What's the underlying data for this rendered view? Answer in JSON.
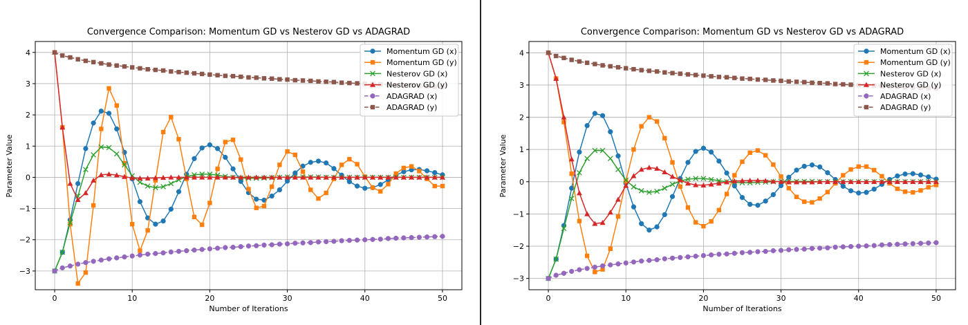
{
  "chart_data": [
    {
      "type": "line",
      "title": "Convergence Comparison: Momentum GD vs Nesterov GD vs ADAGRAD",
      "xlabel": "Number of Iterations",
      "ylabel": "Parameter Value",
      "xlim": [
        -2.5,
        52.5
      ],
      "ylim": [
        -3.6,
        4.35
      ],
      "xticks": [
        0,
        10,
        20,
        30,
        40,
        50
      ],
      "yticks": [
        -3,
        -2,
        -1,
        0,
        1,
        2,
        3,
        4
      ],
      "grid": true,
      "legend_position": "top-right",
      "x": [
        0,
        1,
        2,
        3,
        4,
        5,
        6,
        7,
        8,
        9,
        10,
        11,
        12,
        13,
        14,
        15,
        16,
        17,
        18,
        19,
        20,
        21,
        22,
        23,
        24,
        25,
        26,
        27,
        28,
        29,
        30,
        31,
        32,
        33,
        34,
        35,
        36,
        37,
        38,
        39,
        40,
        41,
        42,
        43,
        44,
        45,
        46,
        47,
        48,
        49,
        50
      ],
      "series": [
        {
          "name": "Momentum GD (x)",
          "color": "#1f77b4",
          "marker": "o",
          "linestyle": "solid",
          "values": [
            -3,
            -2.4,
            -1.36,
            -0.2,
            0.92,
            1.74,
            2.12,
            2.05,
            1.55,
            0.8,
            -0.05,
            -0.78,
            -1.3,
            -1.5,
            -1.4,
            -1.02,
            -0.46,
            0.1,
            0.6,
            0.94,
            1.04,
            0.92,
            0.64,
            0.27,
            -0.13,
            -0.49,
            -0.7,
            -0.73,
            -0.6,
            -0.4,
            -0.12,
            0.14,
            0.36,
            0.48,
            0.52,
            0.46,
            0.28,
            0.07,
            -0.14,
            -0.28,
            -0.35,
            -0.33,
            -0.23,
            -0.08,
            0.07,
            0.18,
            0.24,
            0.25,
            0.21,
            0.15,
            0.08
          ]
        },
        {
          "name": "Momentum GD (y)",
          "color": "#ff7f0e",
          "marker": "s",
          "linestyle": "solid",
          "values": [
            4,
            1.6,
            -1.5,
            -3.4,
            -3.05,
            -0.9,
            1.55,
            2.85,
            2.3,
            0.45,
            -1.5,
            -2.35,
            -1.7,
            -0.1,
            1.45,
            1.93,
            1.22,
            -0.05,
            -1.27,
            -1.52,
            -0.82,
            0.27,
            1.13,
            1.2,
            0.57,
            -0.38,
            -0.98,
            -0.92,
            -0.3,
            0.4,
            0.83,
            0.72,
            0.18,
            -0.4,
            -0.68,
            -0.5,
            -0.05,
            0.4,
            0.58,
            0.42,
            0.02,
            -0.33,
            -0.45,
            -0.22,
            0.12,
            0.3,
            0.35,
            0.2,
            -0.05,
            -0.28,
            -0.28
          ]
        },
        {
          "name": "Nesterov GD (x)",
          "color": "#2ca02c",
          "marker": "x",
          "linestyle": "solid",
          "values": [
            -3,
            -2.4,
            -1.45,
            -0.6,
            0.25,
            0.72,
            0.97,
            0.95,
            0.75,
            0.4,
            0.05,
            -0.16,
            -0.28,
            -0.33,
            -0.3,
            -0.2,
            -0.08,
            0.02,
            0.08,
            0.1,
            0.1,
            0.07,
            0.03,
            0,
            -0.02,
            -0.03,
            -0.03,
            -0.02,
            -0.01,
            0,
            0.01,
            0.01,
            0.01,
            0.01,
            0.01,
            0,
            0,
            0,
            0,
            0,
            0,
            0,
            0,
            0,
            0,
            0,
            0,
            0,
            0,
            0,
            0
          ]
        },
        {
          "name": "Nesterov GD (y)",
          "color": "#d62728",
          "marker": "^",
          "linestyle": "solid",
          "values": [
            4,
            1.6,
            -0.2,
            -0.72,
            -0.5,
            -0.1,
            0.08,
            0.1,
            0.07,
            0.02,
            -0.02,
            -0.03,
            -0.03,
            -0.02,
            -0.01,
            0,
            0,
            0,
            0,
            0,
            0,
            0,
            0,
            0,
            0,
            0,
            0,
            0,
            0,
            0,
            0,
            0,
            0,
            0,
            0,
            0,
            0,
            0,
            0,
            0,
            0,
            0,
            0,
            0,
            0,
            0,
            0,
            0,
            0,
            0,
            0
          ]
        },
        {
          "name": "ADAGRAD (x)",
          "color": "#9467bd",
          "marker": "o",
          "linestyle": "dashed",
          "values": [
            -3,
            -2.9,
            -2.84,
            -2.78,
            -2.73,
            -2.69,
            -2.65,
            -2.61,
            -2.58,
            -2.55,
            -2.52,
            -2.49,
            -2.46,
            -2.44,
            -2.42,
            -2.39,
            -2.37,
            -2.35,
            -2.33,
            -2.31,
            -2.29,
            -2.27,
            -2.25,
            -2.24,
            -2.22,
            -2.2,
            -2.19,
            -2.17,
            -2.16,
            -2.14,
            -2.13,
            -2.11,
            -2.1,
            -2.09,
            -2.07,
            -2.06,
            -2.05,
            -2.03,
            -2.02,
            -2.01,
            -2.0,
            -1.99,
            -1.98,
            -1.96,
            -1.95,
            -1.94,
            -1.93,
            -1.92,
            -1.91,
            -1.9,
            -1.89
          ]
        },
        {
          "name": "ADAGRAD (y)",
          "color": "#8c564b",
          "marker": "s",
          "linestyle": "dashed",
          "values": [
            4,
            3.9,
            3.84,
            3.78,
            3.73,
            3.69,
            3.65,
            3.61,
            3.58,
            3.55,
            3.52,
            3.49,
            3.46,
            3.44,
            3.42,
            3.39,
            3.37,
            3.35,
            3.33,
            3.31,
            3.29,
            3.27,
            3.25,
            3.24,
            3.22,
            3.2,
            3.19,
            3.17,
            3.16,
            3.14,
            3.13,
            3.11,
            3.1,
            3.09,
            3.07,
            3.06,
            3.05,
            3.03,
            3.02,
            3.01,
            3.0,
            2.99,
            2.98,
            2.96,
            2.95,
            2.94,
            2.93,
            2.92,
            2.91,
            2.9,
            2.89
          ]
        }
      ]
    },
    {
      "type": "line",
      "title": "Convergence Comparison: Momentum GD vs Nesterov GD vs ADAGRAD",
      "xlabel": "Number of Iterations",
      "ylabel": "Parameter Value",
      "xlim": [
        -2.5,
        52.5
      ],
      "ylim": [
        -3.35,
        4.35
      ],
      "xticks": [
        0,
        10,
        20,
        30,
        40,
        50
      ],
      "yticks": [
        -3,
        -2,
        -1,
        0,
        1,
        2,
        3,
        4
      ],
      "grid": true,
      "legend_position": "top-right",
      "x": [
        0,
        1,
        2,
        3,
        4,
        5,
        6,
        7,
        8,
        9,
        10,
        11,
        12,
        13,
        14,
        15,
        16,
        17,
        18,
        19,
        20,
        21,
        22,
        23,
        24,
        25,
        26,
        27,
        28,
        29,
        30,
        31,
        32,
        33,
        34,
        35,
        36,
        37,
        38,
        39,
        40,
        41,
        42,
        43,
        44,
        45,
        46,
        47,
        48,
        49,
        50
      ],
      "series": [
        {
          "name": "Momentum GD (x)",
          "color": "#1f77b4",
          "marker": "o",
          "linestyle": "solid",
          "values": [
            -3,
            -2.4,
            -1.36,
            -0.2,
            0.92,
            1.74,
            2.12,
            2.05,
            1.55,
            0.8,
            -0.05,
            -0.78,
            -1.3,
            -1.5,
            -1.4,
            -1.02,
            -0.46,
            0.1,
            0.6,
            0.94,
            1.04,
            0.92,
            0.64,
            0.27,
            -0.13,
            -0.49,
            -0.7,
            -0.73,
            -0.6,
            -0.4,
            -0.12,
            0.14,
            0.36,
            0.48,
            0.52,
            0.46,
            0.28,
            0.07,
            -0.14,
            -0.28,
            -0.35,
            -0.33,
            -0.23,
            -0.08,
            0.07,
            0.18,
            0.24,
            0.25,
            0.21,
            0.15,
            0.08
          ]
        },
        {
          "name": "Momentum GD (y)",
          "color": "#ff7f0e",
          "marker": "s",
          "linestyle": "solid",
          "values": [
            4,
            3.2,
            1.85,
            0.25,
            -1.22,
            -2.3,
            -2.8,
            -2.72,
            -2.08,
            -1.08,
            0.02,
            1.0,
            1.72,
            2.0,
            1.87,
            1.35,
            0.6,
            -0.15,
            -0.8,
            -1.26,
            -1.38,
            -1.23,
            -0.88,
            -0.38,
            0.2,
            0.62,
            0.9,
            0.97,
            0.82,
            0.53,
            0.16,
            -0.2,
            -0.47,
            -0.62,
            -0.64,
            -0.52,
            -0.32,
            -0.05,
            0.2,
            0.38,
            0.47,
            0.47,
            0.36,
            0.17,
            -0.05,
            -0.22,
            -0.31,
            -0.33,
            -0.27,
            -0.17,
            -0.1
          ]
        },
        {
          "name": "Nesterov GD (x)",
          "color": "#2ca02c",
          "marker": "x",
          "linestyle": "solid",
          "values": [
            -3,
            -2.4,
            -1.45,
            -0.52,
            0.28,
            0.72,
            0.97,
            0.97,
            0.72,
            0.38,
            0.05,
            -0.16,
            -0.28,
            -0.33,
            -0.3,
            -0.2,
            -0.08,
            0.02,
            0.08,
            0.1,
            0.1,
            0.07,
            0.03,
            0,
            -0.02,
            -0.03,
            -0.03,
            -0.02,
            -0.01,
            0,
            0.01,
            0.01,
            0.01,
            0.01,
            0.01,
            0,
            0,
            0,
            0,
            0,
            0,
            0,
            0,
            0,
            0,
            0,
            0,
            0,
            0,
            0,
            0
          ]
        },
        {
          "name": "Nesterov GD (y)",
          "color": "#d62728",
          "marker": "^",
          "linestyle": "solid",
          "values": [
            4,
            3.2,
            2.0,
            0.7,
            -0.35,
            -1.0,
            -1.3,
            -1.27,
            -0.95,
            -0.55,
            -0.12,
            0.18,
            0.38,
            0.44,
            0.41,
            0.3,
            0.16,
            0.05,
            -0.05,
            -0.1,
            -0.11,
            -0.08,
            -0.05,
            -0.01,
            0.02,
            0.03,
            0.04,
            0.04,
            0.03,
            0.01,
            0,
            -0.01,
            -0.01,
            -0.01,
            -0.01,
            0,
            0,
            0,
            0,
            0,
            0,
            0,
            0,
            0,
            0,
            0,
            0,
            0,
            0,
            0,
            0
          ]
        },
        {
          "name": "ADAGRAD (x)",
          "color": "#9467bd",
          "marker": "o",
          "linestyle": "dashed",
          "values": [
            -3,
            -2.9,
            -2.84,
            -2.78,
            -2.73,
            -2.69,
            -2.65,
            -2.61,
            -2.58,
            -2.55,
            -2.52,
            -2.49,
            -2.46,
            -2.44,
            -2.42,
            -2.39,
            -2.37,
            -2.35,
            -2.33,
            -2.31,
            -2.29,
            -2.27,
            -2.25,
            -2.24,
            -2.22,
            -2.2,
            -2.19,
            -2.17,
            -2.16,
            -2.14,
            -2.13,
            -2.11,
            -2.1,
            -2.09,
            -2.07,
            -2.06,
            -2.05,
            -2.03,
            -2.02,
            -2.01,
            -2.0,
            -1.99,
            -1.98,
            -1.96,
            -1.95,
            -1.94,
            -1.93,
            -1.92,
            -1.91,
            -1.9,
            -1.89
          ]
        },
        {
          "name": "ADAGRAD (y)",
          "color": "#8c564b",
          "marker": "s",
          "linestyle": "dashed",
          "values": [
            4,
            3.9,
            3.84,
            3.78,
            3.73,
            3.69,
            3.65,
            3.61,
            3.58,
            3.55,
            3.52,
            3.49,
            3.46,
            3.44,
            3.42,
            3.39,
            3.37,
            3.35,
            3.33,
            3.31,
            3.29,
            3.27,
            3.25,
            3.24,
            3.22,
            3.2,
            3.19,
            3.17,
            3.16,
            3.14,
            3.13,
            3.11,
            3.1,
            3.09,
            3.07,
            3.06,
            3.05,
            3.03,
            3.02,
            3.01,
            3.0,
            2.99,
            2.98,
            2.96,
            2.95,
            2.94,
            2.93,
            2.92,
            2.91,
            2.9,
            2.89
          ]
        }
      ]
    }
  ]
}
